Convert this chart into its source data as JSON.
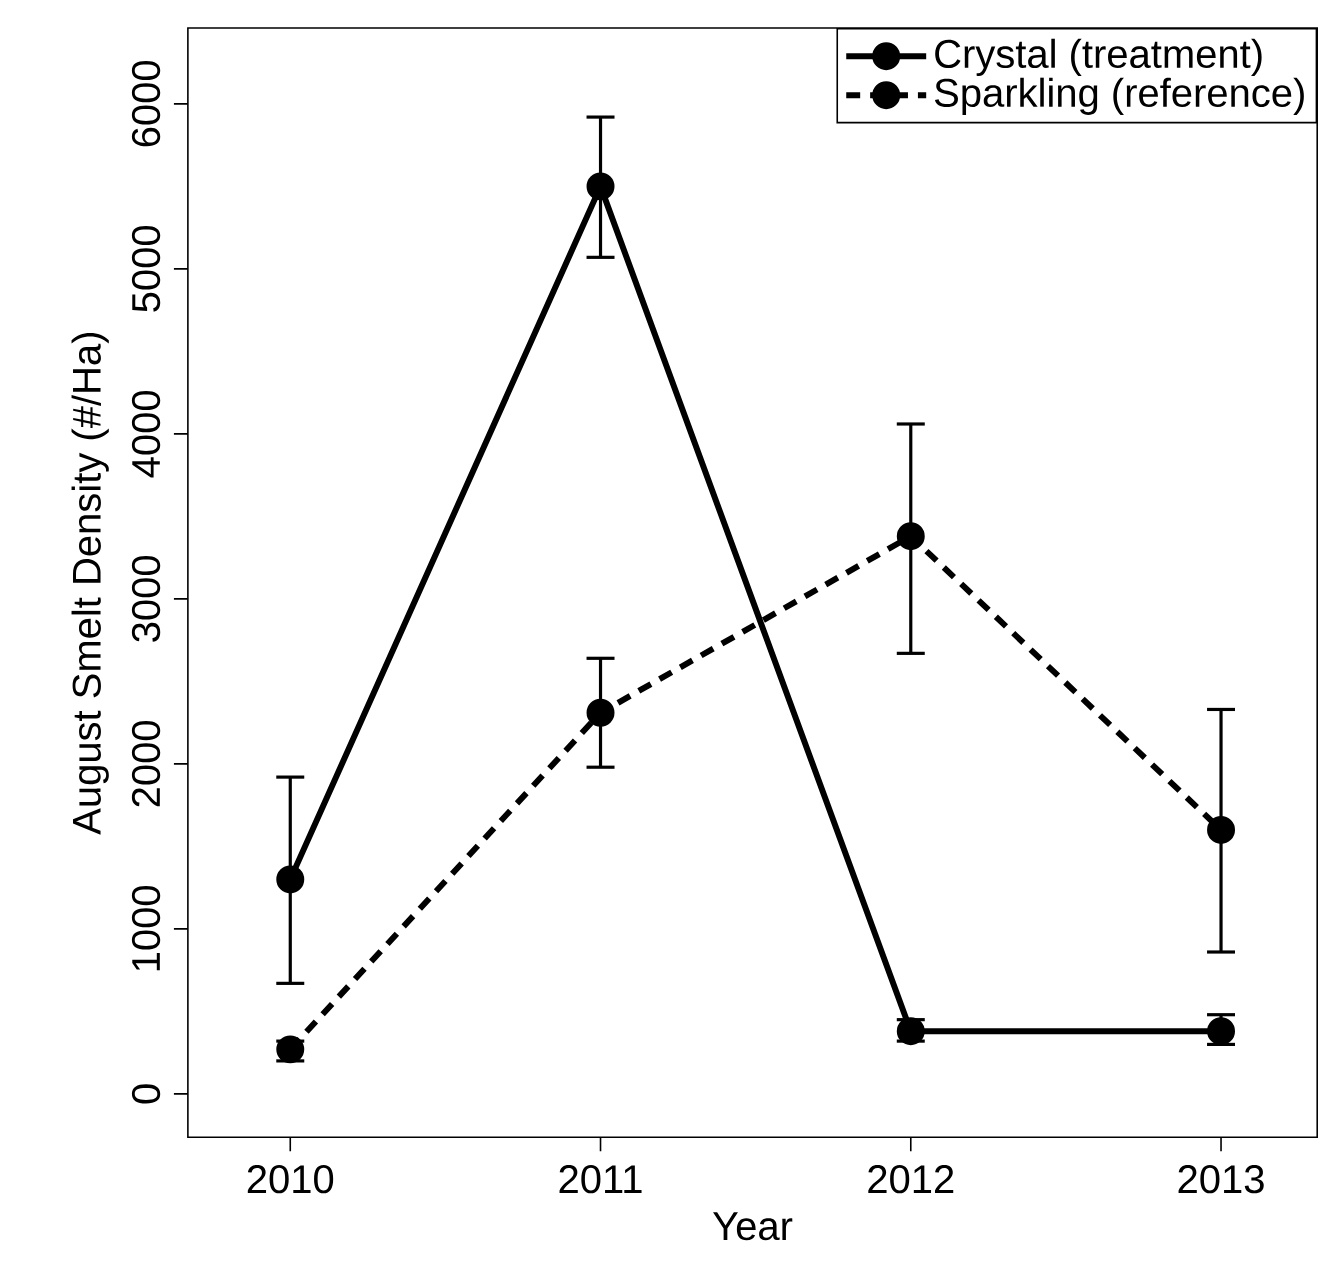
{
  "chart_data": {
    "type": "line",
    "xlabel": "Year",
    "ylabel": "August Smelt Density (#/Ha)",
    "x": [
      2010,
      2011,
      2012,
      2013
    ],
    "series": [
      {
        "name": "Crystal (treatment)",
        "color": "#000000",
        "line_style": "solid",
        "values": [
          1300,
          5500,
          380,
          380
        ],
        "errors": [
          [
            670,
            1920
          ],
          [
            5070,
            5920
          ],
          [
            320,
            450
          ],
          [
            300,
            480
          ]
        ]
      },
      {
        "name": "Sparkling (reference)",
        "color": "#000000",
        "line_style": "dashed",
        "values": [
          270,
          2310,
          3380,
          1600
        ],
        "errors": [
          [
            200,
            320
          ],
          [
            1980,
            2640
          ],
          [
            2670,
            4060
          ],
          [
            860,
            2330
          ]
        ]
      }
    ],
    "xlim": [
      2009.67,
      2013.31
    ],
    "ylim": [
      -263,
      6460
    ],
    "xticks": [
      2010,
      2011,
      2012,
      2013
    ],
    "yticks": [
      0,
      1000,
      2000,
      3000,
      4000,
      5000,
      6000
    ],
    "marker": "circle",
    "grid": false,
    "legend": "top right"
  }
}
